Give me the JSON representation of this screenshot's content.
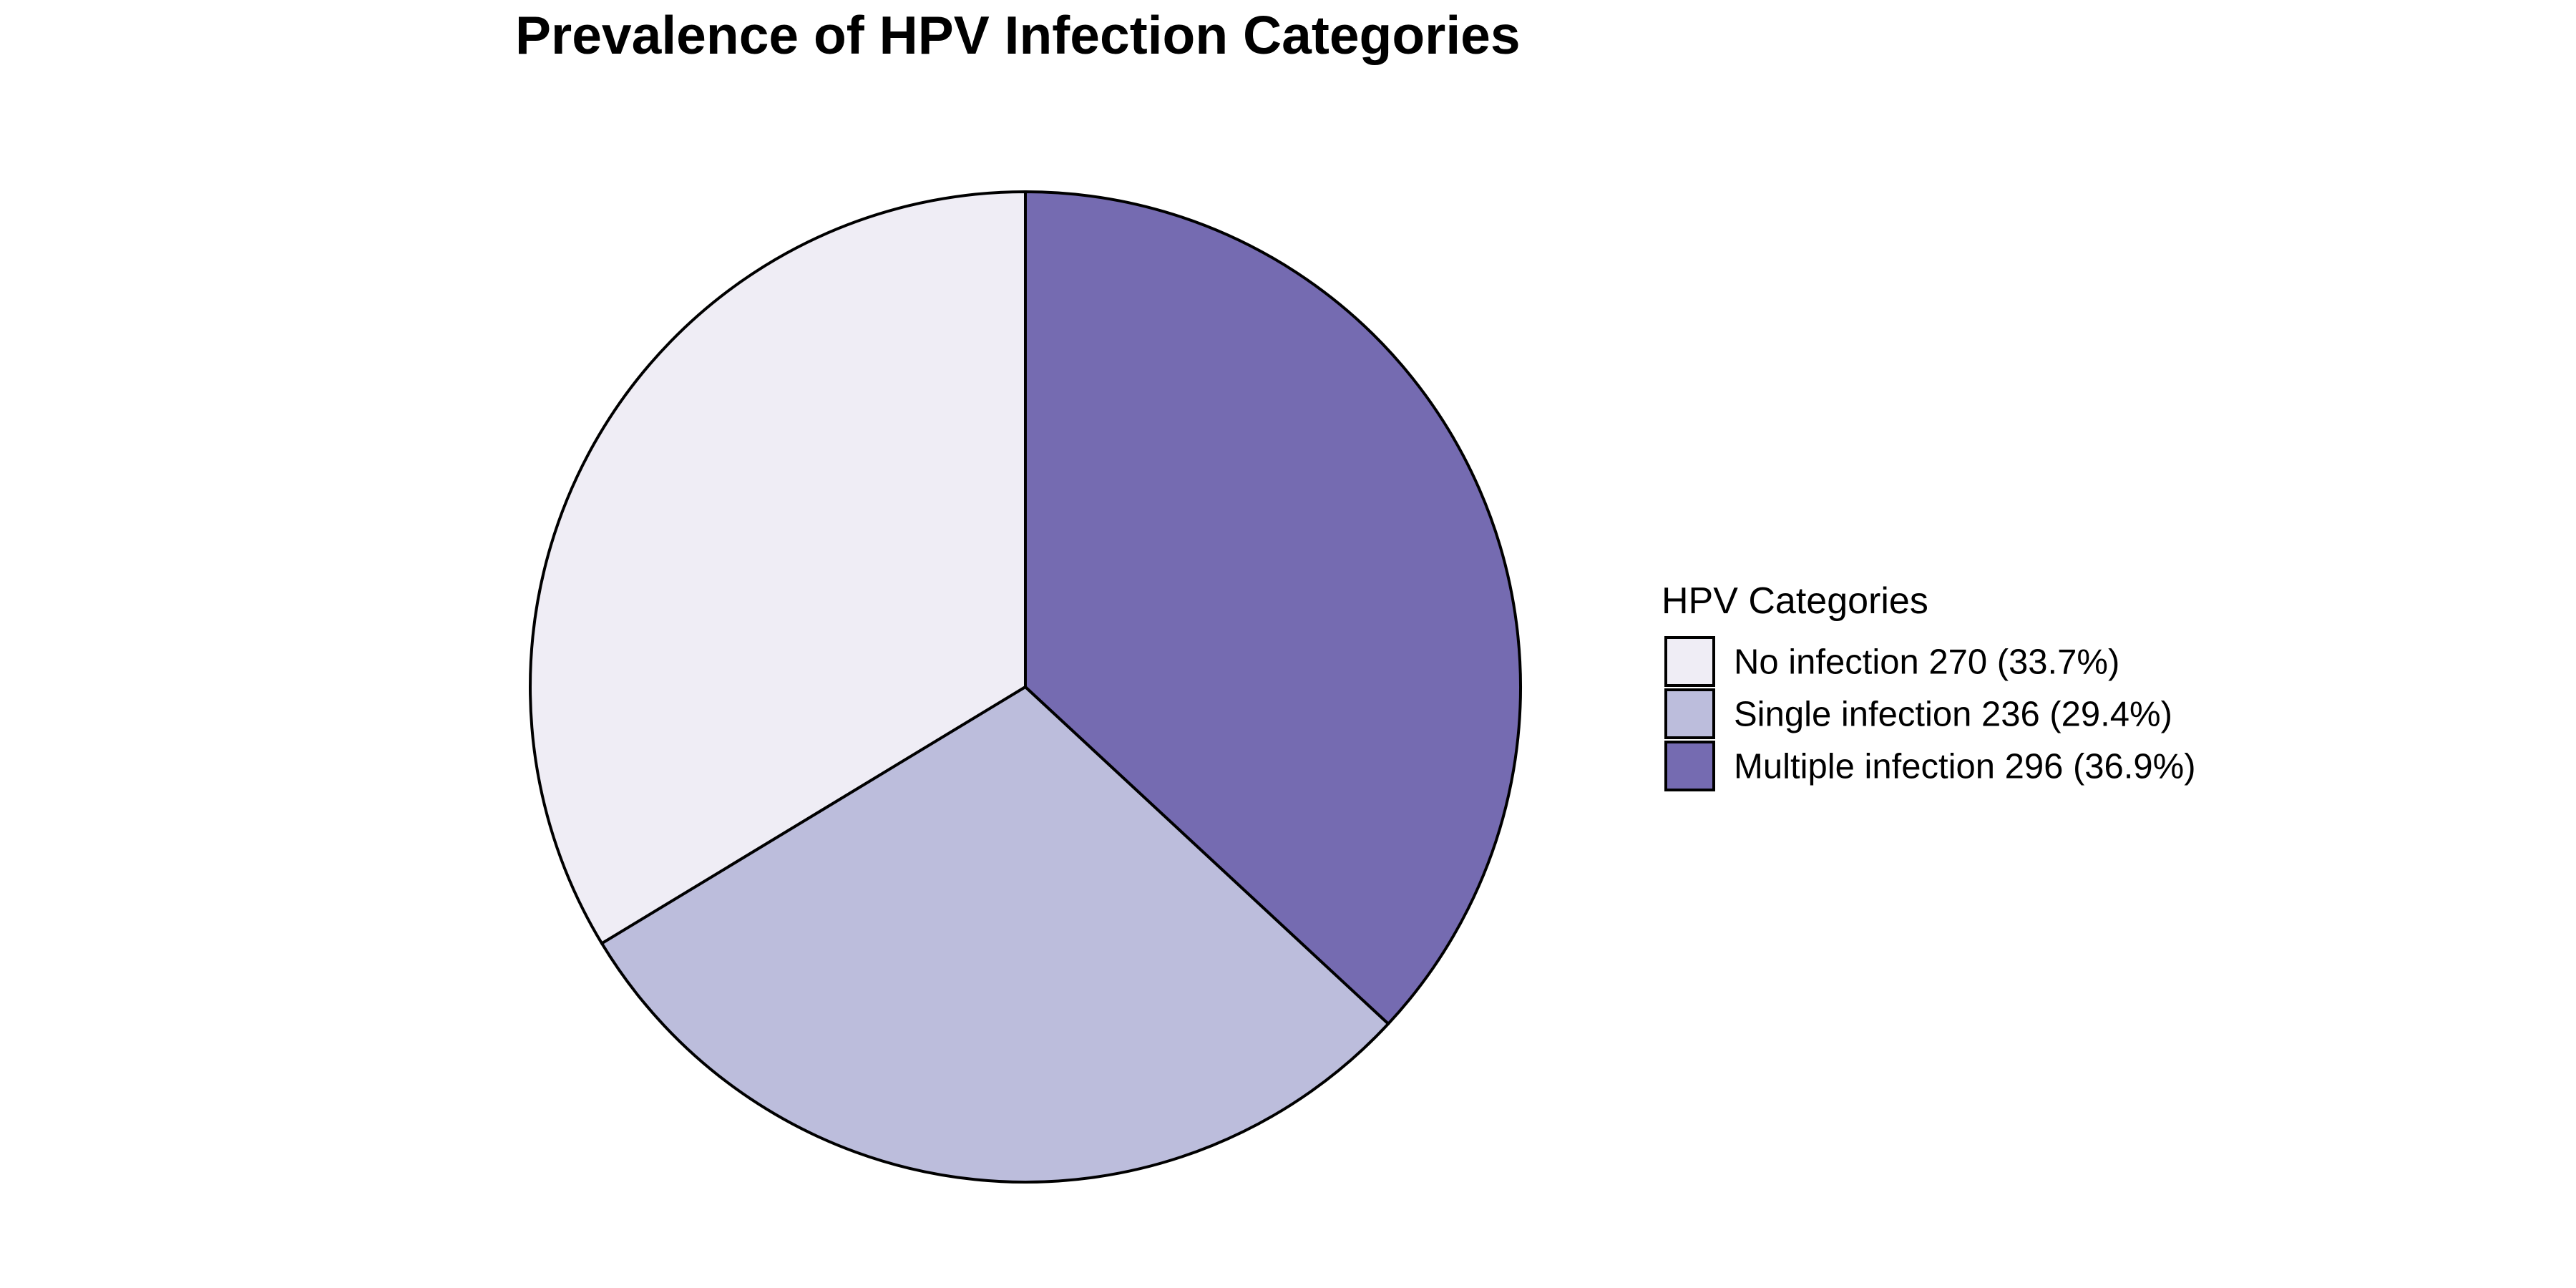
{
  "chart_data": {
    "type": "pie",
    "title": "Prevalence of HPV Infection Categories",
    "legend_title": "HPV Categories",
    "legend_position": "right",
    "start_angle": "top",
    "direction": "counterclockwise",
    "slices": [
      {
        "label": "No infection 270 (33.7%)",
        "value": 270,
        "percent": 33.7,
        "color": "#EFEDF5"
      },
      {
        "label": "Single infection 236 (29.4%)",
        "value": 236,
        "percent": 29.4,
        "color": "#BCBDDC"
      },
      {
        "label": "Multiple infection 296 (36.9%)",
        "value": 296,
        "percent": 36.9,
        "color": "#756BB1"
      }
    ],
    "outline_color": "#000000"
  }
}
